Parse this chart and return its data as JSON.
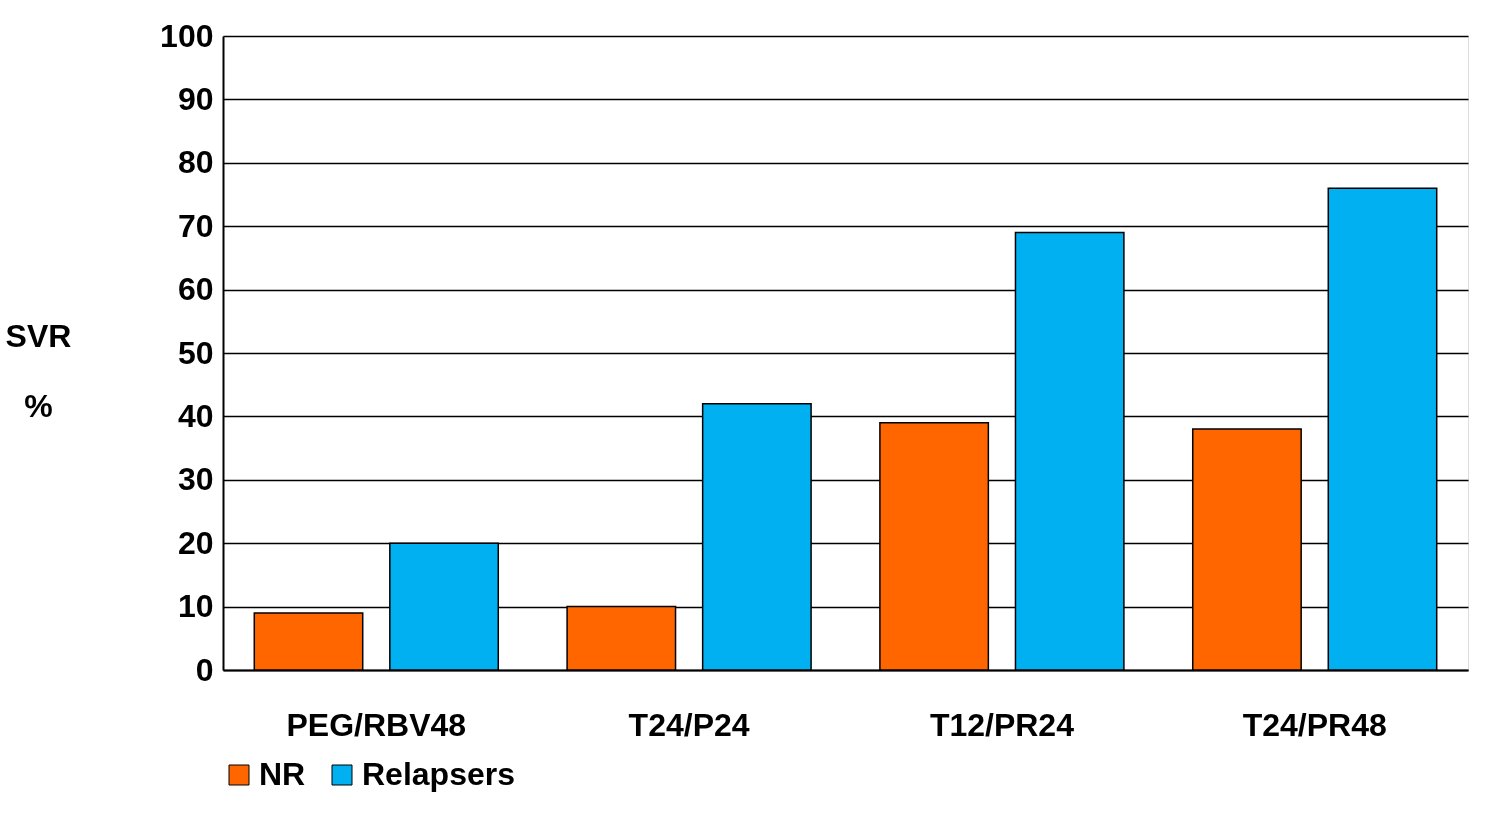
{
  "chart_data": {
    "type": "bar",
    "ylabel": "SVR %",
    "categories": [
      "PEG/RBV48",
      "T24/P24",
      "T12/PR24",
      "T24/PR48"
    ],
    "series": [
      {
        "name": "NR",
        "color": "#ff6600",
        "values": [
          9,
          10,
          39,
          38
        ]
      },
      {
        "name": "Relapsers",
        "color": "#00b0f0",
        "values": [
          20,
          42,
          69,
          76
        ]
      }
    ],
    "ylim": [
      0,
      100
    ],
    "yticks": [
      0,
      10,
      20,
      30,
      40,
      50,
      60,
      70,
      80,
      90,
      100
    ],
    "grid": "y",
    "legend": "bottom"
  }
}
